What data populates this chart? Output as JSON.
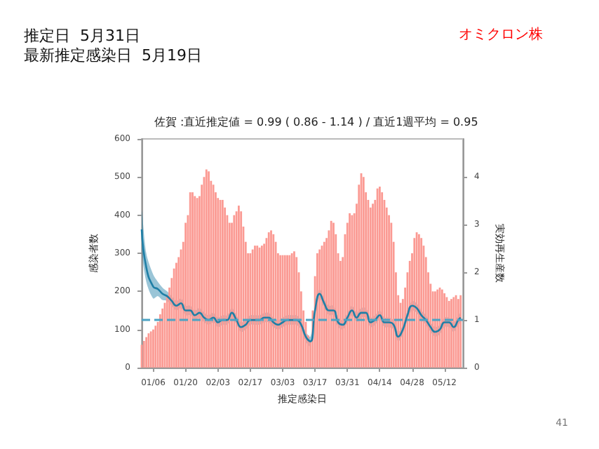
{
  "chart_data": {
    "type": "bar",
    "title": "佐賀 :直近推定値 = 0.99 ( 0.86 - 1.14 ) / 直近1週平均 = 0.95",
    "annotations": [
      "推定日  5月31日",
      "最新推定感染日  5月19日",
      "オミクロン株",
      "41"
    ],
    "xlabel": "推定感染日",
    "ylabel": "感染者数",
    "y2label": "実効再生産数",
    "xlim": [
      "--01-01",
      "--05-20"
    ],
    "xticks": [
      {
        "value": "--01-06",
        "label": "01/06"
      },
      {
        "value": "--01-20",
        "label": "01/20"
      },
      {
        "value": "--02-03",
        "label": "02/03"
      },
      {
        "value": "--02-17",
        "label": "02/17"
      },
      {
        "value": "--03-03",
        "label": "03/03"
      },
      {
        "value": "--03-17",
        "label": "03/17"
      },
      {
        "value": "--03-31",
        "label": "03/31"
      },
      {
        "value": "--04-14",
        "label": "04/14"
      },
      {
        "value": "--04-28",
        "label": "04/28"
      },
      {
        "value": "--05-12",
        "label": "05/12"
      }
    ],
    "ylim": [
      0,
      600
    ],
    "yticks": [
      0,
      100,
      200,
      300,
      400,
      500,
      600
    ],
    "y2lim": [
      0,
      4.8
    ],
    "y2ticks": [
      0,
      1,
      2,
      3,
      4
    ],
    "ref_lines": [
      {
        "axis": "y2",
        "value": 1,
        "color": "#4da3c4",
        "line_style": "dashed"
      }
    ],
    "series": [
      {
        "color": "#fb9a93",
        "x": [
          "--01-01",
          "--01-02",
          "--01-03",
          "--01-04",
          "--01-05",
          "--01-06",
          "--01-07",
          "--01-08",
          "--01-09",
          "--01-10",
          "--01-11",
          "--01-12",
          "--01-13",
          "--01-14",
          "--01-15",
          "--01-16",
          "--01-17",
          "--01-18",
          "--01-19",
          "--01-20",
          "--01-21",
          "--01-22",
          "--01-23",
          "--01-24",
          "--01-25",
          "--01-26",
          "--01-27",
          "--01-28",
          "--01-29",
          "--01-30",
          "--01-31",
          "--02-01",
          "--02-02",
          "--02-03",
          "--02-04",
          "--02-05",
          "--02-06",
          "--02-07",
          "--02-08",
          "--02-09",
          "--02-10",
          "--02-11",
          "--02-12",
          "--02-13",
          "--02-14",
          "--02-15",
          "--02-16",
          "--02-17",
          "--02-18",
          "--02-19",
          "--02-20",
          "--02-21",
          "--02-22",
          "--02-23",
          "--02-24",
          "--02-25",
          "--02-26",
          "--02-27",
          "--02-28",
          "--03-01",
          "--03-02",
          "--03-03",
          "--03-04",
          "--03-05",
          "--03-06",
          "--03-07",
          "--03-08",
          "--03-09",
          "--03-10",
          "--03-11",
          "--03-12",
          "--03-13",
          "--03-14",
          "--03-15",
          "--03-16",
          "--03-17",
          "--03-18",
          "--03-19",
          "--03-20",
          "--03-21",
          "--03-22",
          "--03-23",
          "--03-24",
          "--03-25",
          "--03-26",
          "--03-27",
          "--03-28",
          "--03-29",
          "--03-30",
          "--03-31",
          "--04-01",
          "--04-02",
          "--04-03",
          "--04-04",
          "--04-05",
          "--04-06",
          "--04-07",
          "--04-08",
          "--04-09",
          "--04-10",
          "--04-11",
          "--04-12",
          "--04-13",
          "--04-14",
          "--04-15",
          "--04-16",
          "--04-17",
          "--04-18",
          "--04-19",
          "--04-20",
          "--04-21",
          "--04-22",
          "--04-23",
          "--04-24",
          "--04-25",
          "--04-26",
          "--04-27",
          "--04-28",
          "--04-29",
          "--04-30",
          "--05-01",
          "--05-02",
          "--05-03",
          "--05-04",
          "--05-05",
          "--05-06",
          "--05-07",
          "--05-08",
          "--05-09",
          "--05-10",
          "--05-11",
          "--05-12",
          "--05-13",
          "--05-14",
          "--05-15",
          "--05-16",
          "--05-17",
          "--05-18",
          "--05-19"
        ],
        "values": [
          60,
          70,
          80,
          90,
          95,
          100,
          110,
          120,
          140,
          155,
          170,
          190,
          210,
          235,
          260,
          275,
          290,
          310,
          330,
          380,
          400,
          460,
          460,
          450,
          445,
          450,
          480,
          500,
          520,
          515,
          490,
          480,
          460,
          445,
          440,
          440,
          420,
          400,
          380,
          380,
          400,
          410,
          425,
          410,
          370,
          330,
          300,
          300,
          310,
          320,
          320,
          315,
          320,
          325,
          340,
          355,
          360,
          350,
          330,
          300,
          295,
          295,
          295,
          295,
          295,
          300,
          305,
          290,
          250,
          200,
          150,
          120,
          85,
          70,
          150,
          240,
          300,
          310,
          320,
          330,
          340,
          360,
          385,
          380,
          350,
          300,
          280,
          290,
          350,
          380,
          405,
          400,
          405,
          430,
          480,
          510,
          500,
          460,
          440,
          420,
          430,
          440,
          470,
          475,
          460,
          440,
          420,
          400,
          380,
          330,
          250,
          190,
          170,
          180,
          210,
          250,
          280,
          300,
          340,
          355,
          350,
          340,
          320,
          290,
          250,
          220,
          200,
          200,
          205,
          210,
          205,
          195,
          185,
          175,
          180,
          185,
          190,
          180,
          190
        ]
      },
      {
        "type": "line",
        "axis": "y2",
        "color": "#1f7fa6",
        "x": [
          "--01-01",
          "--01-03",
          "--01-06",
          "--01-08",
          "--01-10",
          "--01-12",
          "--01-14",
          "--01-16",
          "--01-18",
          "--01-20",
          "--01-22",
          "--01-24",
          "--01-26",
          "--01-28",
          "--01-30",
          "--02-01",
          "--02-03",
          "--02-05",
          "--02-07",
          "--02-09",
          "--02-11",
          "--02-13",
          "--02-15",
          "--02-17",
          "--02-19",
          "--02-21",
          "--02-23",
          "--02-25",
          "--02-27",
          "--03-01",
          "--03-03",
          "--03-05",
          "--03-07",
          "--03-09",
          "--03-11",
          "--03-13",
          "--03-15",
          "--03-17",
          "--03-19",
          "--03-21",
          "--03-23",
          "--03-25",
          "--03-27",
          "--03-29",
          "--03-31",
          "--04-02",
          "--04-04",
          "--04-06",
          "--04-08",
          "--04-10",
          "--04-12",
          "--04-14",
          "--04-16",
          "--04-18",
          "--04-20",
          "--04-22",
          "--04-24",
          "--04-26",
          "--04-28",
          "--04-30",
          "--05-02",
          "--05-04",
          "--05-06",
          "--05-08",
          "--05-10",
          "--05-12",
          "--05-14",
          "--05-16",
          "--05-18",
          "--05-19"
        ],
        "values": [
          2.9,
          2.1,
          1.7,
          1.65,
          1.55,
          1.5,
          1.4,
          1.3,
          1.35,
          1.2,
          1.2,
          1.1,
          1.15,
          1.05,
          1.0,
          1.05,
          0.95,
          1.0,
          1.0,
          1.15,
          1.0,
          0.85,
          0.9,
          1.0,
          1.0,
          1.0,
          1.05,
          1.05,
          0.95,
          0.9,
          0.95,
          1.0,
          1.0,
          1.0,
          0.9,
          0.65,
          0.55,
          1.2,
          1.55,
          1.35,
          1.2,
          1.2,
          0.95,
          0.9,
          1.05,
          1.2,
          1.05,
          1.15,
          1.15,
          0.95,
          1.0,
          1.1,
          0.95,
          0.95,
          0.9,
          0.65,
          0.8,
          1.1,
          1.3,
          1.25,
          1.1,
          1.0,
          0.85,
          0.75,
          0.8,
          0.95,
          0.95,
          0.85,
          1.0,
          1.05
        ],
        "lower": [
          2.5,
          1.8,
          1.45,
          1.5,
          1.42,
          1.4,
          1.3,
          1.2,
          1.25,
          1.1,
          1.1,
          1.0,
          1.05,
          0.95,
          0.9,
          0.95,
          0.85,
          0.9,
          0.9,
          1.05,
          0.9,
          0.75,
          0.8,
          0.9,
          0.9,
          0.9,
          0.95,
          0.95,
          0.85,
          0.8,
          0.85,
          0.9,
          0.9,
          0.9,
          0.8,
          0.55,
          0.45,
          1.1,
          1.45,
          1.25,
          1.1,
          1.1,
          0.85,
          0.8,
          0.95,
          1.1,
          0.95,
          1.05,
          1.05,
          0.85,
          0.9,
          1.0,
          0.85,
          0.85,
          0.8,
          0.55,
          0.7,
          1.0,
          1.2,
          1.15,
          1.0,
          0.9,
          0.75,
          0.65,
          0.7,
          0.85,
          0.85,
          0.75,
          0.9,
          0.95
        ],
        "upper": [
          3.3,
          2.4,
          1.95,
          1.8,
          1.68,
          1.6,
          1.5,
          1.4,
          1.45,
          1.3,
          1.3,
          1.2,
          1.25,
          1.15,
          1.1,
          1.15,
          1.05,
          1.1,
          1.1,
          1.25,
          1.1,
          0.95,
          1.0,
          1.1,
          1.1,
          1.1,
          1.15,
          1.15,
          1.05,
          1.0,
          1.05,
          1.1,
          1.1,
          1.1,
          1.0,
          0.75,
          0.65,
          1.3,
          1.65,
          1.45,
          1.3,
          1.3,
          1.05,
          1.0,
          1.15,
          1.3,
          1.15,
          1.25,
          1.25,
          1.05,
          1.1,
          1.2,
          1.05,
          1.05,
          1.0,
          0.75,
          0.9,
          1.2,
          1.4,
          1.35,
          1.2,
          1.1,
          0.95,
          0.85,
          0.9,
          1.05,
          1.05,
          0.95,
          1.1,
          1.15
        ]
      }
    ]
  }
}
